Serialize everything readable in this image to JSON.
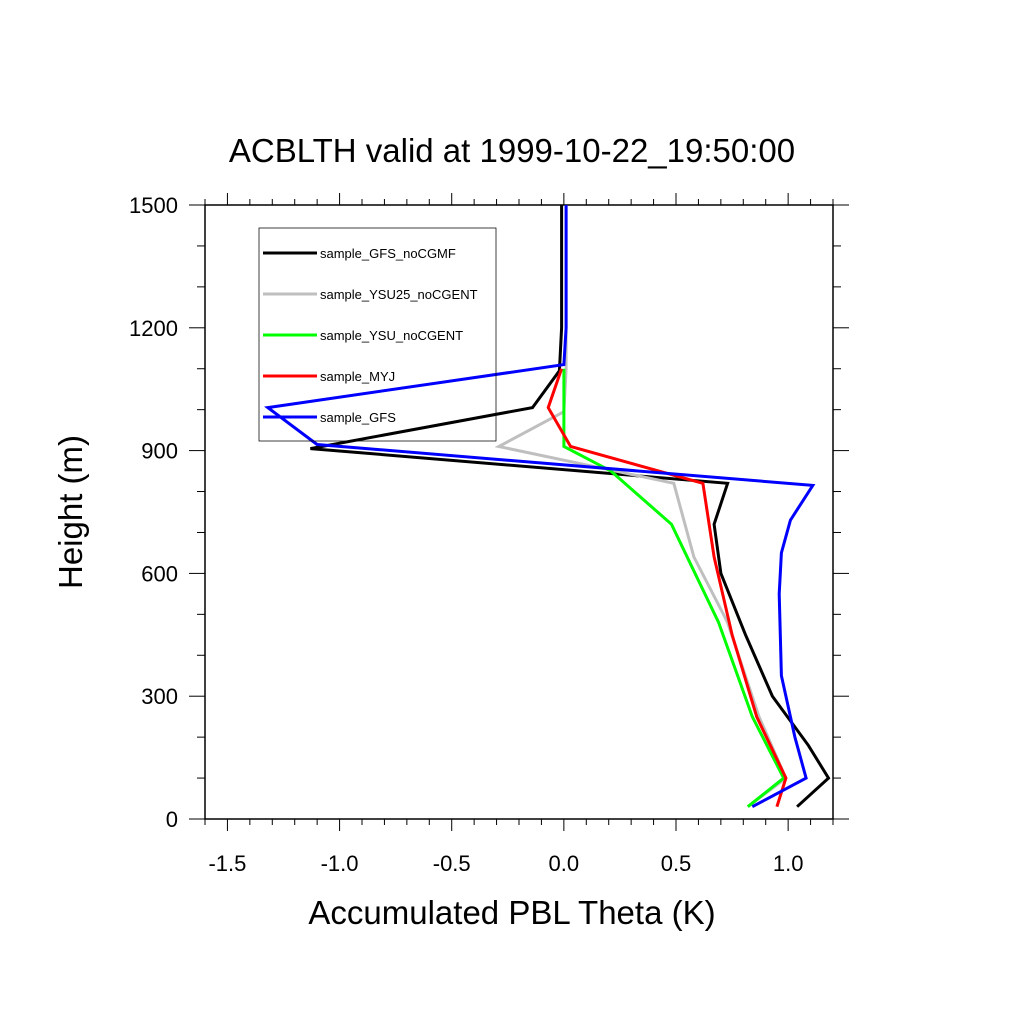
{
  "chart_data": {
    "type": "line",
    "title": "ACBLTH valid at 1999-10-22_19:50:00",
    "xlabel": "Accumulated PBL Theta (K)",
    "ylabel": "Height (m)",
    "xlim": [
      -1.6,
      1.2
    ],
    "ylim": [
      0,
      1500
    ],
    "xticks": [
      -1.5,
      -1.0,
      -0.5,
      0.0,
      0.5,
      1.0
    ],
    "xtick_labels": [
      "-1.5",
      "-1.0",
      "-0.5",
      "0.0",
      "0.5",
      "1.0"
    ],
    "yticks": [
      0,
      300,
      600,
      900,
      1200,
      1500
    ],
    "ytick_labels": [
      "0",
      "300",
      "600",
      "900",
      "1200",
      "1500"
    ],
    "grid": false,
    "legend_position": "top-left",
    "series": [
      {
        "name": "sample_GFS_noCGMF",
        "color": "#000000",
        "points": [
          [
            1.04,
            30
          ],
          [
            1.18,
            100
          ],
          [
            1.09,
            180
          ],
          [
            0.93,
            300
          ],
          [
            0.81,
            450
          ],
          [
            0.7,
            600
          ],
          [
            0.67,
            720
          ],
          [
            0.73,
            820
          ],
          [
            -1.13,
            905
          ],
          [
            -0.14,
            1005
          ],
          [
            -0.02,
            1095
          ],
          [
            -0.01,
            1200
          ],
          [
            -0.01,
            1500
          ]
        ]
      },
      {
        "name": "sample_YSU25_noCGENT",
        "color": "#bfbfbf",
        "points": [
          [
            0.82,
            30
          ],
          [
            0.99,
            100
          ],
          [
            0.87,
            250
          ],
          [
            0.73,
            480
          ],
          [
            0.58,
            640
          ],
          [
            0.49,
            820
          ],
          [
            -0.29,
            910
          ],
          [
            0.0,
            995
          ],
          [
            0.01,
            1100
          ],
          [
            0.01,
            1200
          ],
          [
            0.01,
            1500
          ]
        ]
      },
      {
        "name": "sample_YSU_noCGENT",
        "color": "#00ff00",
        "points": [
          [
            0.82,
            30
          ],
          [
            0.98,
            100
          ],
          [
            0.84,
            250
          ],
          [
            0.69,
            480
          ],
          [
            0.48,
            720
          ],
          [
            0.21,
            850
          ],
          [
            0.0,
            910
          ],
          [
            0.0,
            1000
          ],
          [
            0.0,
            1100
          ]
        ]
      },
      {
        "name": "sample_MYJ",
        "color": "#ff0000",
        "points": [
          [
            0.95,
            30
          ],
          [
            0.99,
            100
          ],
          [
            0.86,
            250
          ],
          [
            0.75,
            450
          ],
          [
            0.67,
            640
          ],
          [
            0.62,
            820
          ],
          [
            0.03,
            910
          ],
          [
            -0.07,
            1005
          ],
          [
            -0.01,
            1100
          ]
        ]
      },
      {
        "name": "sample_GFS",
        "color": "#0000ff",
        "points": [
          [
            0.84,
            30
          ],
          [
            1.08,
            100
          ],
          [
            1.03,
            200
          ],
          [
            0.97,
            350
          ],
          [
            0.96,
            550
          ],
          [
            0.97,
            650
          ],
          [
            1.01,
            730
          ],
          [
            1.11,
            815
          ],
          [
            -1.1,
            915
          ],
          [
            -1.32,
            1005
          ],
          [
            0.0,
            1110
          ],
          [
            0.01,
            1200
          ],
          [
            0.01,
            1500
          ]
        ]
      }
    ]
  }
}
